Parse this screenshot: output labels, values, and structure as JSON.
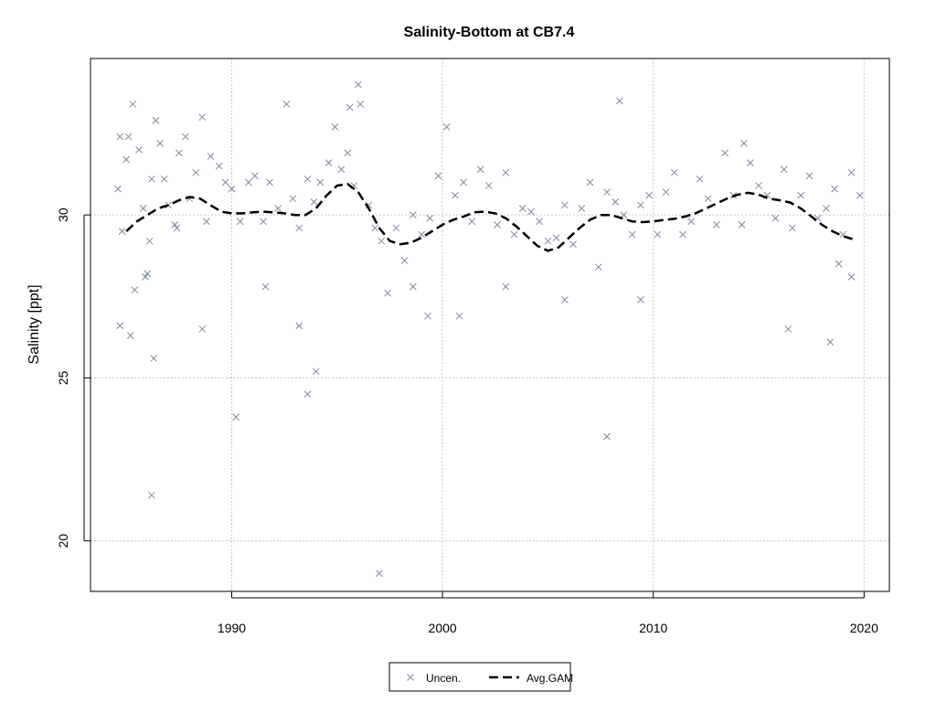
{
  "chart_data": {
    "type": "scatter",
    "title": "Salinity-Bottom at CB7.4",
    "xlabel": "",
    "ylabel": "Salinity [ppt]",
    "xlim": [
      1983.3,
      2021.2
    ],
    "ylim": [
      18.45,
      34.8
    ],
    "x_ticks": [
      1990,
      2000,
      2010,
      2020
    ],
    "y_ticks": [
      20,
      25,
      30
    ],
    "grid": true,
    "legend_position": "bottom-center",
    "colors": {
      "points": "#7f8aa0",
      "gam": "#000000",
      "grid": "#c8c8c8"
    },
    "series": [
      {
        "name": "Uncen.",
        "marker": "x",
        "x": [
          1984.6,
          1984.7,
          1984.8,
          1985.0,
          1985.1,
          1985.3,
          1985.4,
          1985.6,
          1985.8,
          1986.0,
          1986.1,
          1986.2,
          1986.4,
          1986.6,
          1986.8,
          1987.0,
          1987.3,
          1987.5,
          1987.8,
          1988.0,
          1988.3,
          1988.6,
          1988.8,
          1989.0,
          1989.4,
          1989.7,
          1990.0,
          1990.4,
          1990.8,
          1991.1,
          1991.5,
          1991.8,
          1992.2,
          1992.6,
          1992.9,
          1993.2,
          1993.6,
          1993.9,
          1994.2,
          1994.6,
          1994.9,
          1995.2,
          1995.5,
          1995.8,
          1996.1,
          1996.5,
          1996.8,
          1997.1,
          1997.4,
          1997.8,
          1998.2,
          1998.6,
          1999.0,
          1999.4,
          1999.8,
          2000.2,
          2000.6,
          2001.0,
          2001.4,
          2001.8,
          2002.2,
          2002.6,
          2003.0,
          2003.4,
          2003.8,
          2004.2,
          2004.6,
          2005.0,
          2005.4,
          2005.8,
          2006.2,
          2006.6,
          2007.0,
          2007.4,
          2007.8,
          2008.2,
          2008.6,
          2009.0,
          2009.4,
          2009.8,
          2010.2,
          2010.6,
          2011.0,
          2011.4,
          2011.8,
          2012.2,
          2012.6,
          2013.0,
          2013.4,
          2013.8,
          2014.2,
          2014.6,
          2015.0,
          2015.4,
          2015.8,
          2016.2,
          2016.6,
          2017.0,
          2017.4,
          2017.8,
          2018.2,
          2018.6,
          2019.0,
          2019.4,
          2019.8,
          1984.7,
          1985.2,
          1985.9,
          1986.2,
          1986.3,
          1987.4,
          1988.6,
          1990.2,
          1991.6,
          1993.2,
          1993.6,
          1994.0,
          1995.6,
          1996.0,
          1997.0,
          1998.6,
          1999.3,
          2000.8,
          2003.0,
          2005.8,
          2007.8,
          2008.4,
          2009.4,
          2014.3,
          2016.4,
          2018.4,
          2018.8,
          2019.4
        ],
        "y": [
          30.8,
          32.4,
          29.5,
          31.7,
          32.4,
          33.4,
          27.7,
          32.0,
          30.2,
          28.2,
          29.2,
          31.1,
          32.9,
          32.2,
          31.1,
          30.3,
          29.7,
          31.9,
          32.4,
          30.5,
          31.3,
          33.0,
          29.8,
          31.8,
          31.5,
          31.0,
          30.8,
          29.8,
          31.0,
          31.2,
          29.8,
          31.0,
          30.2,
          33.4,
          30.5,
          29.6,
          31.1,
          30.4,
          31.0,
          31.6,
          32.7,
          31.4,
          31.9,
          30.9,
          33.4,
          30.3,
          29.6,
          29.2,
          27.6,
          29.6,
          28.6,
          30.0,
          29.4,
          29.9,
          31.2,
          32.7,
          30.6,
          31.0,
          29.8,
          31.4,
          30.9,
          29.7,
          31.3,
          29.4,
          30.2,
          30.1,
          29.8,
          29.2,
          29.3,
          30.3,
          29.1,
          30.2,
          31.0,
          28.4,
          30.7,
          30.4,
          30.0,
          29.4,
          30.3,
          30.6,
          29.4,
          30.7,
          31.3,
          29.4,
          29.8,
          31.1,
          30.5,
          29.7,
          31.9,
          30.6,
          29.7,
          31.6,
          30.9,
          30.6,
          29.9,
          31.4,
          29.6,
          30.6,
          31.2,
          29.9,
          30.2,
          30.8,
          29.4,
          31.3,
          30.6,
          26.6,
          26.3,
          28.1,
          21.4,
          25.6,
          29.6,
          26.5,
          23.8,
          27.8,
          26.6,
          24.5,
          25.2,
          33.3,
          34.0,
          19.0,
          27.8,
          26.9,
          26.9,
          27.8,
          27.4,
          23.2,
          33.5,
          27.4,
          32.2,
          26.5,
          26.1,
          28.5,
          28.1
        ]
      },
      {
        "name": "Avg.GAM",
        "line": "dashed",
        "x": [
          1985.0,
          1985.5,
          1986.0,
          1986.5,
          1987.0,
          1987.5,
          1988.0,
          1988.5,
          1989.0,
          1989.5,
          1990.0,
          1990.5,
          1991.0,
          1991.5,
          1992.0,
          1992.5,
          1993.0,
          1993.5,
          1994.0,
          1994.5,
          1995.0,
          1995.5,
          1996.0,
          1996.5,
          1997.0,
          1997.5,
          1998.0,
          1998.5,
          1999.0,
          1999.5,
          2000.0,
          2000.5,
          2001.0,
          2001.5,
          2002.0,
          2002.5,
          2003.0,
          2003.5,
          2004.0,
          2004.5,
          2005.0,
          2005.5,
          2006.0,
          2006.5,
          2007.0,
          2007.5,
          2008.0,
          2008.5,
          2009.0,
          2009.5,
          2010.0,
          2010.5,
          2011.0,
          2011.5,
          2012.0,
          2012.5,
          2013.0,
          2013.5,
          2014.0,
          2014.5,
          2015.0,
          2015.5,
          2016.0,
          2016.5,
          2017.0,
          2017.5,
          2018.0,
          2018.5,
          2019.0,
          2019.5
        ],
        "y": [
          29.5,
          29.8,
          30.0,
          30.2,
          30.3,
          30.45,
          30.55,
          30.5,
          30.3,
          30.1,
          30.05,
          30.05,
          30.08,
          30.1,
          30.08,
          30.05,
          30.0,
          30.0,
          30.2,
          30.6,
          30.9,
          30.95,
          30.7,
          30.2,
          29.6,
          29.2,
          29.1,
          29.15,
          29.3,
          29.5,
          29.7,
          29.85,
          29.95,
          30.08,
          30.1,
          30.05,
          29.9,
          29.65,
          29.35,
          29.05,
          28.9,
          29.0,
          29.3,
          29.6,
          29.85,
          30.0,
          30.0,
          29.9,
          29.8,
          29.78,
          29.8,
          29.85,
          29.88,
          29.95,
          30.05,
          30.2,
          30.35,
          30.5,
          30.62,
          30.68,
          30.62,
          30.5,
          30.45,
          30.38,
          30.2,
          29.95,
          29.7,
          29.5,
          29.35,
          29.25
        ]
      }
    ]
  }
}
